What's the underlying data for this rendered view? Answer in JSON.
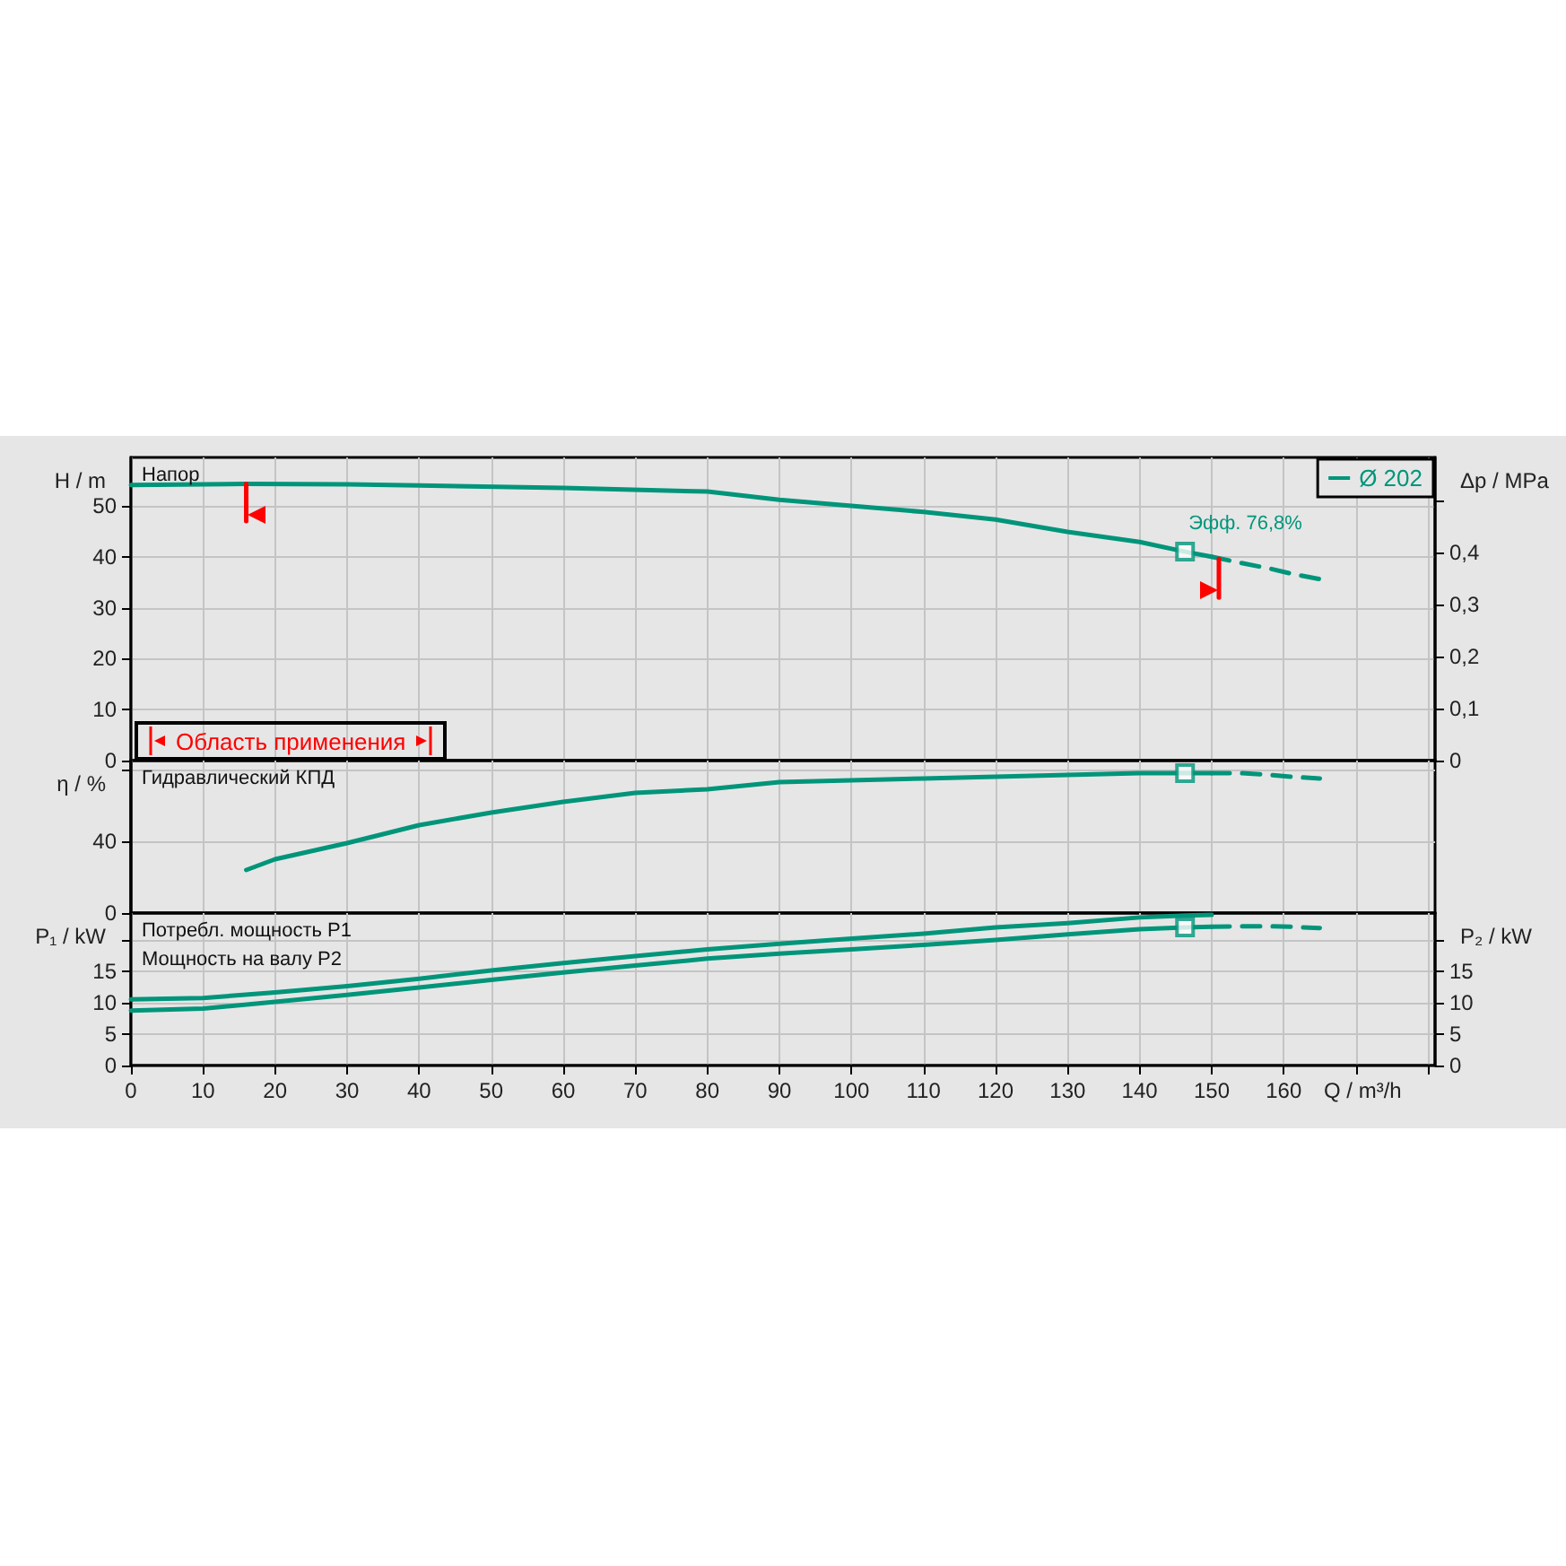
{
  "chart_data": [
    {
      "type": "line",
      "ylabel": "H / m",
      "y2label": "Δp / MPa",
      "xlim": [
        0,
        181
      ],
      "xticks": [
        0,
        10,
        20,
        30,
        40,
        50,
        60,
        70,
        80,
        90,
        100,
        110,
        120,
        130,
        140,
        150,
        160,
        170,
        180
      ],
      "ylim": [
        0,
        59.5
      ],
      "yticks": [
        0,
        10,
        20,
        30,
        40,
        50
      ],
      "y2lim": [
        0,
        0.584
      ],
      "y2ticks": [
        0,
        {
          "value": 0.1,
          "label": "0,1"
        },
        {
          "value": 0.2,
          "label": "0,2"
        },
        {
          "value": 0.3,
          "label": "0,3"
        },
        {
          "value": 0.4,
          "label": "0,4"
        },
        {
          "value": 0.5,
          "label": null
        }
      ],
      "grid": true,
      "legend": "top right",
      "tick_labels": "y",
      "series": [
        {
          "name": "Ø 202",
          "color": "#00957a",
          "x": [
            0,
            16,
            30,
            40,
            60,
            80,
            90,
            100,
            110,
            120,
            130,
            140,
            146.3,
            150
          ],
          "values": [
            54.1,
            54.3,
            54.2,
            54.0,
            53.5,
            52.8,
            51.2,
            50.0,
            48.8,
            47.3,
            44.9,
            42.9,
            41.0,
            40.0
          ]
        },
        {
          "color": "#00957a",
          "line_style": "dashed",
          "x": [
            150,
            154,
            158,
            161,
            165
          ],
          "values": [
            40.0,
            38.8,
            37.7,
            36.7,
            35.6
          ]
        },
        {
          "type": "scatter",
          "marker": "square",
          "color": "#00957a",
          "x": [
            146.3
          ],
          "values": [
            41.0
          ]
        },
        {
          "color": "#ff0000",
          "x": [
            16,
            16
          ],
          "values": [
            54.3,
            47
          ]
        },
        {
          "color": "#ff0000",
          "x": [
            151,
            151
          ],
          "values": [
            39.6,
            32
          ]
        }
      ],
      "annotations": [
        "Напор",
        {
          "text": "Эфф.  76,8%",
          "x": 146.3,
          "y": 41.0
        },
        "Область применения"
      ]
    },
    {
      "type": "line",
      "ylabel": "η / %",
      "xlim": [
        0,
        181
      ],
      "xticks": [
        0,
        10,
        20,
        30,
        40,
        50,
        60,
        70,
        80,
        90,
        100,
        110,
        120,
        130,
        140,
        150,
        160,
        170,
        180
      ],
      "ylim": [
        0,
        85
      ],
      "yticks": [
        0,
        40,
        {
          "value": 80,
          "label": null
        }
      ],
      "grid": true,
      "tick_labels": "y",
      "series": [
        {
          "color": "#00957a",
          "x": [
            16,
            20,
            30,
            40,
            50,
            60,
            70,
            80,
            90,
            100,
            110,
            120,
            130,
            140,
            146.3,
            150
          ],
          "values": [
            24,
            30,
            39,
            49,
            56,
            62,
            67,
            69,
            73,
            74,
            75,
            76,
            77,
            78,
            78,
            78
          ]
        },
        {
          "color": "#00957a",
          "line_style": "dashed",
          "x": [
            150,
            154,
            158,
            161,
            165
          ],
          "values": [
            78,
            78,
            77,
            76,
            75
          ]
        },
        {
          "type": "scatter",
          "marker": "square",
          "color": "#00957a",
          "x": [
            146.3
          ],
          "values": [
            78
          ]
        }
      ],
      "annotations": [
        "Гидравлический КПД"
      ]
    },
    {
      "type": "line",
      "xlabel": "Q / m³/h",
      "ylabel": "P₁ / kW",
      "y2label": "P₂ / kW",
      "xlim": [
        0,
        181
      ],
      "xticks": [
        0,
        10,
        20,
        30,
        40,
        50,
        60,
        70,
        80,
        90,
        100,
        110,
        120,
        130,
        140,
        150,
        160,
        {
          "value": 170,
          "label": null
        },
        {
          "value": 180,
          "label": null
        }
      ],
      "ylim": [
        0,
        24.4
      ],
      "yticks": [
        0,
        5,
        10,
        15,
        {
          "value": 20,
          "label": null
        }
      ],
      "y2lim": [
        0,
        24.4
      ],
      "y2ticks": [
        0,
        5,
        10,
        15,
        {
          "value": 20,
          "label": null
        }
      ],
      "grid": true,
      "series": [
        {
          "color": "#00957a",
          "x": [
            0,
            10,
            20,
            30,
            40,
            50,
            60,
            70,
            80,
            90,
            100,
            110,
            120,
            130,
            140,
            146.3,
            150
          ],
          "values": [
            10.6,
            10.8,
            11.7,
            12.7,
            13.9,
            15.2,
            16.4,
            17.5,
            18.6,
            19.5,
            20.3,
            21.1,
            22.1,
            22.8,
            23.7,
            24.0,
            24.1
          ]
        },
        {
          "color": "#00957a",
          "x": [
            0,
            10,
            20,
            30,
            40,
            50,
            60,
            70,
            80,
            90,
            100,
            110,
            120,
            130,
            140,
            146.3,
            150
          ],
          "values": [
            8.8,
            9.1,
            10.2,
            11.3,
            12.5,
            13.7,
            14.9,
            16.0,
            17.1,
            17.9,
            18.6,
            19.3,
            20.1,
            21.0,
            21.8,
            22.1,
            22.2
          ]
        },
        {
          "color": "#00957a",
          "line_style": "dashed",
          "x": [
            150,
            154,
            158,
            161,
            165
          ],
          "values": [
            22.2,
            22.3,
            22.3,
            22.2,
            22.0
          ]
        },
        {
          "type": "scatter",
          "marker": "square",
          "color": "#00957a",
          "x": [
            146.3
          ],
          "values": [
            22.1
          ]
        }
      ],
      "annotations": [
        "Потребл. мощность P1",
        "Мощность на валу P2"
      ]
    }
  ]
}
